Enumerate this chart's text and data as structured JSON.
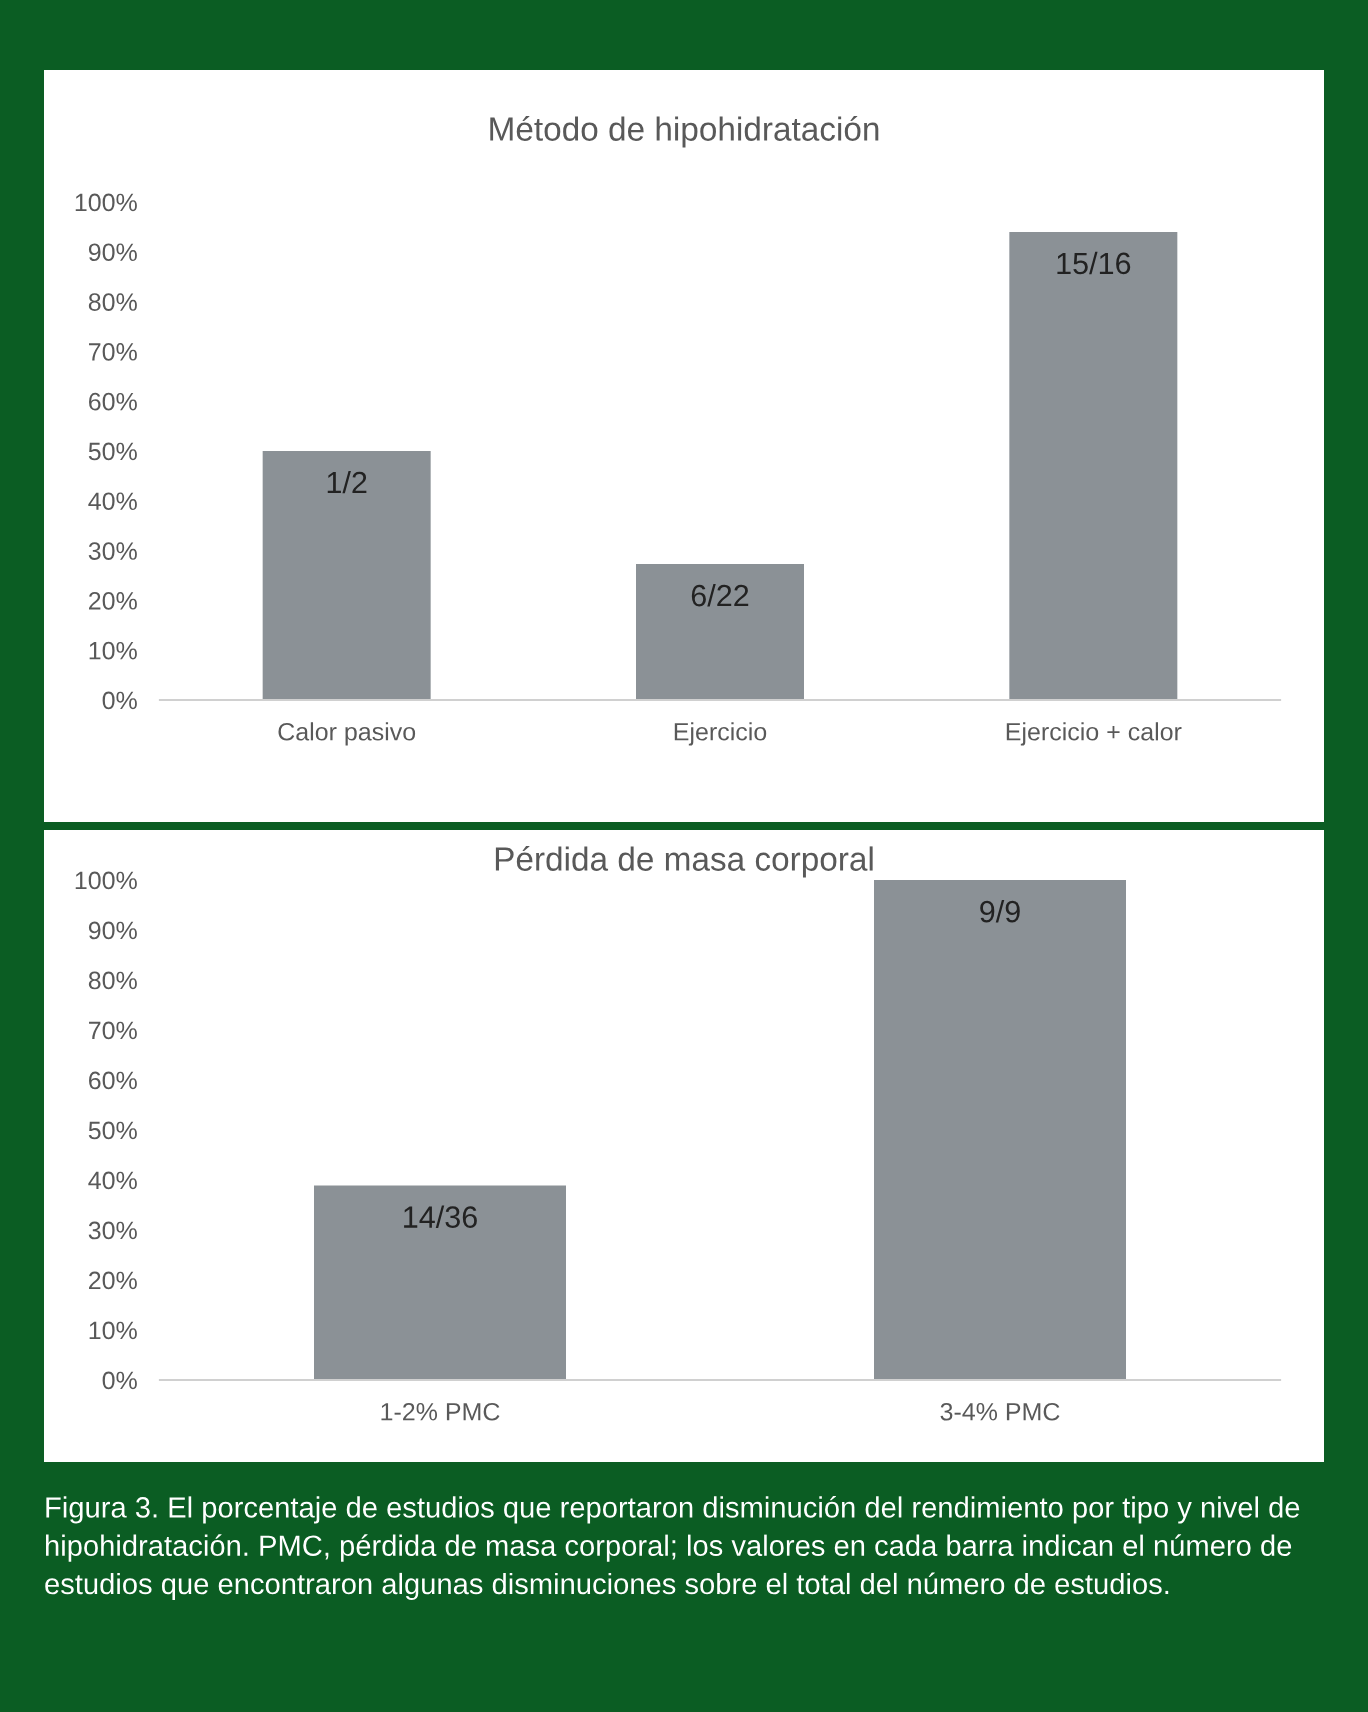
{
  "chart_data": [
    {
      "type": "bar",
      "title": "Método de hipohidratación",
      "categories": [
        "Calor pasivo",
        "Ejercicio",
        "Ejercicio + calor"
      ],
      "values": [
        50,
        27.3,
        94
      ],
      "color": "#8b9196",
      "ylim": [
        0,
        100
      ],
      "annotations": [
        {
          "text": "1/2",
          "x": "Calor pasivo",
          "y": 50
        },
        {
          "text": "6/22",
          "x": "Ejercicio",
          "y": 27.3
        },
        {
          "text": "15/16",
          "x": "Ejercicio + calor",
          "y": 94
        }
      ],
      "yticks": [
        {
          "value": 0,
          "label": "0%"
        },
        {
          "value": 10,
          "label": "10%"
        },
        {
          "value": 20,
          "label": "20%"
        },
        {
          "value": 30,
          "label": "30%"
        },
        {
          "value": 40,
          "label": "40%"
        },
        {
          "value": 50,
          "label": "50%"
        },
        {
          "value": 60,
          "label": "60%"
        },
        {
          "value": 70,
          "label": "70%"
        },
        {
          "value": 80,
          "label": "80%"
        },
        {
          "value": 90,
          "label": "90%"
        },
        {
          "value": 100,
          "label": "100%"
        }
      ]
    },
    {
      "type": "bar",
      "title": "Pérdida de masa corporal",
      "categories": [
        "1-2% PMC",
        "3-4% PMC"
      ],
      "values": [
        38.9,
        100
      ],
      "color": "#8b9196",
      "ylim": [
        0,
        100
      ],
      "yticks": [
        {
          "value": 0,
          "label": "0%"
        },
        {
          "value": 10,
          "label": "10%"
        },
        {
          "value": 20,
          "label": "20%"
        },
        {
          "value": 30,
          "label": "30%"
        },
        {
          "value": 40,
          "label": "40%"
        },
        {
          "value": 50,
          "label": "50%"
        },
        {
          "value": 60,
          "label": "60%"
        },
        {
          "value": 70,
          "label": "70%"
        },
        {
          "value": 80,
          "label": "80%"
        },
        {
          "value": 90,
          "label": "90%"
        },
        {
          "value": 100,
          "label": "100%"
        }
      ],
      "annotations": [
        {
          "text": "14/36",
          "x": "1-2% PMC",
          "y": 38.9
        },
        {
          "text": "9/9",
          "x": "3-4% PMC",
          "y": 100
        },
        "Figura 3. El porcentaje de estudios que reportaron disminución del rendimiento por tipo y nivel de hipohidratación. PMC, pérdida de masa corporal; los valores en cada barra indican el número de estudios que encontraron algunas disminuciones sobre el total del número de estudios."
      ]
    }
  ]
}
